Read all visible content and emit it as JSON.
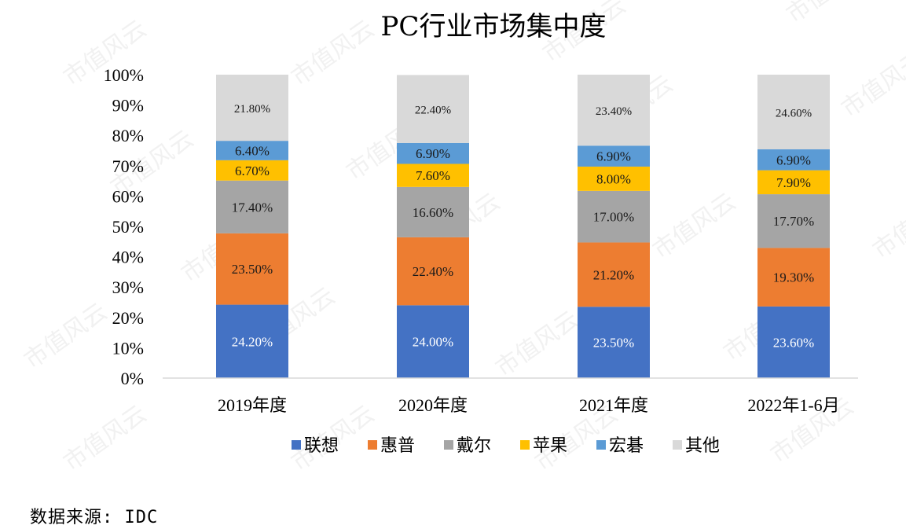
{
  "source_note": "数据来源: IDC",
  "watermark": "市值风云",
  "chart_data": {
    "type": "bar",
    "stacked": true,
    "title": "PC行业市场集中度",
    "xlabel": "",
    "ylabel": "",
    "categories": [
      "2019年度",
      "2020年度",
      "2021年度",
      "2022年1-6月"
    ],
    "ylim": [
      0,
      100
    ],
    "yticks": [
      "0%",
      "10%",
      "20%",
      "30%",
      "40%",
      "50%",
      "60%",
      "70%",
      "80%",
      "90%",
      "100%"
    ],
    "grid": false,
    "legend_position": "bottom",
    "series": [
      {
        "name": "联想",
        "color": "#4472C4",
        "values": [
          24.2,
          24.0,
          23.5,
          23.6
        ],
        "labels": [
          "24.20%",
          "24.00%",
          "23.50%",
          "23.60%"
        ]
      },
      {
        "name": "惠普",
        "color": "#ED7D31",
        "values": [
          23.5,
          22.4,
          21.2,
          19.3
        ],
        "labels": [
          "23.50%",
          "22.40%",
          "21.20%",
          "19.30%"
        ]
      },
      {
        "name": "戴尔",
        "color": "#A5A5A5",
        "values": [
          17.4,
          16.6,
          17.0,
          17.7
        ],
        "labels": [
          "17.40%",
          "16.60%",
          "17.00%",
          "17.70%"
        ]
      },
      {
        "name": "苹果",
        "color": "#FFC000",
        "values": [
          6.7,
          7.6,
          8.0,
          7.9
        ],
        "labels": [
          "6.70%",
          "7.60%",
          "8.00%",
          "7.90%"
        ]
      },
      {
        "name": "宏碁",
        "color": "#5B9BD5",
        "values": [
          6.4,
          6.9,
          6.9,
          6.9
        ],
        "labels": [
          "6.40%",
          "6.90%",
          "6.90%",
          "6.90%"
        ]
      },
      {
        "name": "其他",
        "color": "#D9D9D9",
        "values": [
          21.8,
          22.4,
          23.4,
          24.6
        ],
        "labels": [
          "21.80%",
          "22.40%",
          "23.40%",
          "24.60%"
        ]
      }
    ]
  }
}
